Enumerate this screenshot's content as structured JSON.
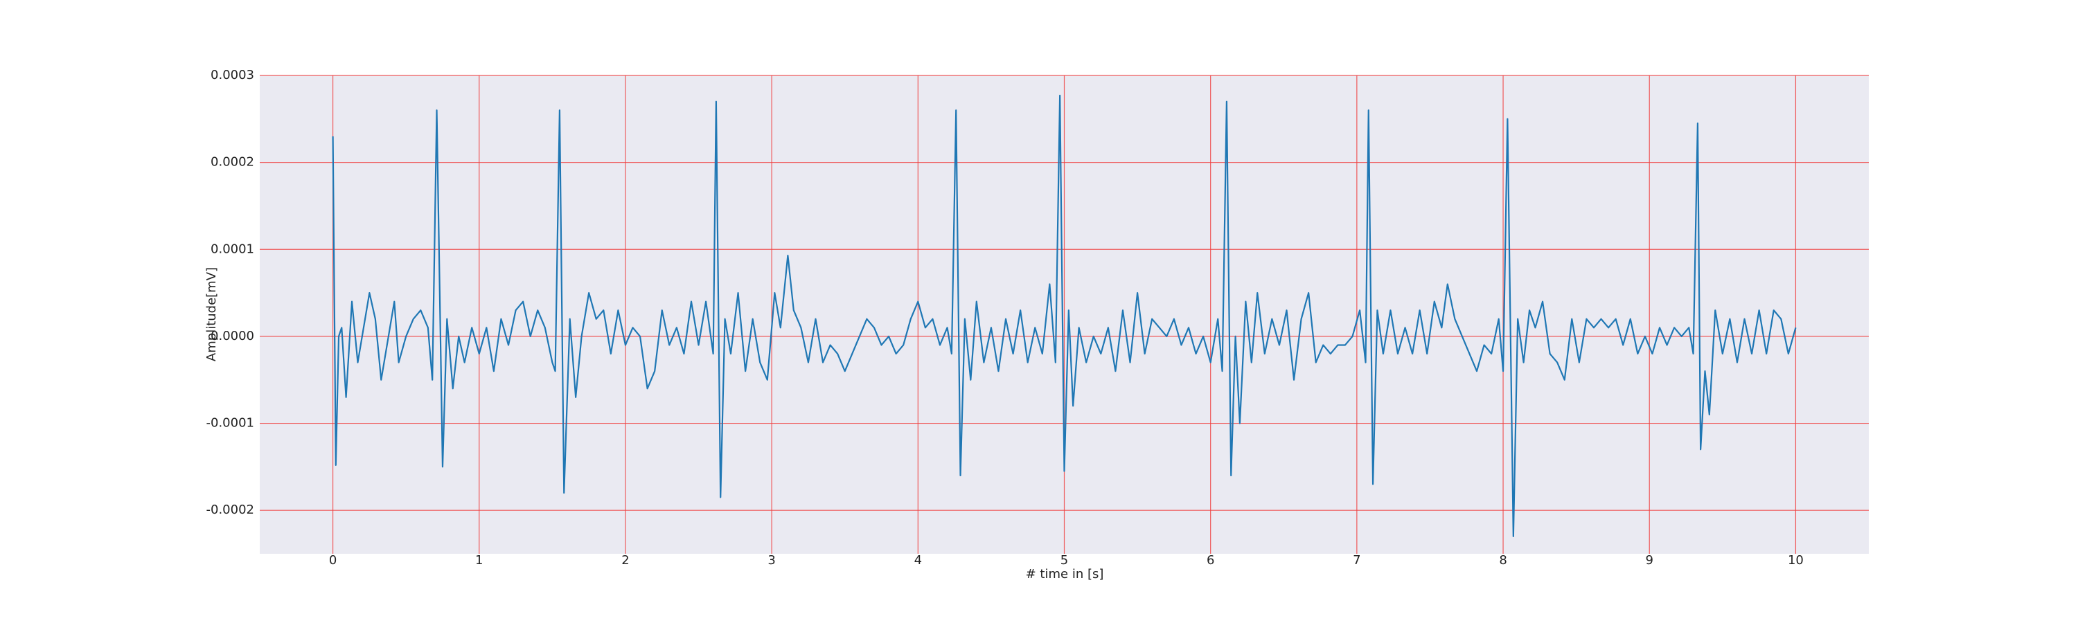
{
  "chart_data": {
    "type": "line",
    "x_label": "# time in [s]",
    "y_label": "Amplitude[mV]",
    "xlim": [
      -0.5,
      10.5
    ],
    "ylim": [
      -0.00025,
      0.0003
    ],
    "xticks": [
      0,
      1,
      2,
      3,
      4,
      5,
      6,
      7,
      8,
      9,
      10
    ],
    "yticks": [
      -0.0002,
      -0.0001,
      {
        "value": 0,
        "label": "0.0000"
      },
      0.0001,
      0.0002,
      0.0003
    ],
    "grid": true,
    "grid_color": "#f04040",
    "background": "#eaeaf2",
    "series": [
      {
        "color": "#1f77b4",
        "x": [
          0,
          0.02,
          0.04,
          0.06,
          0.09,
          0.13,
          0.17,
          0.21,
          0.25,
          0.29,
          0.33,
          0.38,
          0.42,
          0.45,
          0.5,
          0.55,
          0.6,
          0.65,
          0.68,
          0.71,
          0.75,
          0.78,
          0.82,
          0.86,
          0.9,
          0.95,
          1.0,
          1.05,
          1.1,
          1.15,
          1.2,
          1.25,
          1.3,
          1.35,
          1.4,
          1.45,
          1.5,
          1.52,
          1.55,
          1.58,
          1.62,
          1.66,
          1.7,
          1.75,
          1.8,
          1.85,
          1.9,
          1.95,
          2.0,
          2.05,
          2.1,
          2.15,
          2.2,
          2.25,
          2.3,
          2.35,
          2.4,
          2.45,
          2.5,
          2.55,
          2.6,
          2.62,
          2.65,
          2.68,
          2.72,
          2.77,
          2.82,
          2.87,
          2.92,
          2.97,
          3.02,
          3.06,
          3.11,
          3.15,
          3.2,
          3.25,
          3.3,
          3.35,
          3.4,
          3.45,
          3.5,
          3.55,
          3.6,
          3.65,
          3.7,
          3.75,
          3.8,
          3.85,
          3.9,
          3.95,
          4.0,
          4.05,
          4.1,
          4.15,
          4.2,
          4.23,
          4.26,
          4.29,
          4.32,
          4.36,
          4.4,
          4.45,
          4.5,
          4.55,
          4.6,
          4.65,
          4.7,
          4.75,
          4.8,
          4.85,
          4.9,
          4.94,
          4.97,
          5.0,
          5.03,
          5.06,
          5.1,
          5.15,
          5.2,
          5.25,
          5.3,
          5.35,
          5.4,
          5.45,
          5.5,
          5.55,
          5.6,
          5.65,
          5.7,
          5.75,
          5.8,
          5.85,
          5.9,
          5.95,
          6.0,
          6.05,
          6.08,
          6.11,
          6.14,
          6.17,
          6.2,
          6.24,
          6.28,
          6.32,
          6.37,
          6.42,
          6.47,
          6.52,
          6.57,
          6.62,
          6.67,
          6.72,
          6.77,
          6.82,
          6.87,
          6.92,
          6.97,
          7.02,
          7.06,
          7.08,
          7.11,
          7.14,
          7.18,
          7.23,
          7.28,
          7.33,
          7.38,
          7.43,
          7.48,
          7.53,
          7.58,
          7.62,
          7.67,
          7.72,
          7.77,
          7.82,
          7.87,
          7.92,
          7.97,
          8.0,
          8.03,
          8.07,
          8.1,
          8.14,
          8.18,
          8.22,
          8.27,
          8.32,
          8.37,
          8.42,
          8.47,
          8.52,
          8.57,
          8.62,
          8.67,
          8.72,
          8.77,
          8.82,
          8.87,
          8.92,
          8.97,
          9.02,
          9.07,
          9.12,
          9.17,
          9.22,
          9.27,
          9.3,
          9.33,
          9.35,
          9.38,
          9.41,
          9.45,
          9.5,
          9.55,
          9.6,
          9.65,
          9.7,
          9.75,
          9.8,
          9.85,
          9.9,
          9.95,
          10.0
        ],
        "values": [
          0.00023,
          -0.000148,
          0,
          1e-05,
          -7e-05,
          4e-05,
          -3e-05,
          1e-05,
          5e-05,
          2e-05,
          -5e-05,
          0,
          4e-05,
          -3e-05,
          0,
          2e-05,
          3e-05,
          1e-05,
          -5e-05,
          0.00026,
          -0.00015,
          2e-05,
          -6e-05,
          0,
          -3e-05,
          1e-05,
          -2e-05,
          1e-05,
          -4e-05,
          2e-05,
          -1e-05,
          3e-05,
          4e-05,
          0,
          3e-05,
          1e-05,
          -3e-05,
          -4e-05,
          0.00026,
          -0.00018,
          2e-05,
          -7e-05,
          0,
          5e-05,
          2e-05,
          3e-05,
          -2e-05,
          3e-05,
          -1e-05,
          1e-05,
          0,
          -6e-05,
          -4e-05,
          3e-05,
          -1e-05,
          1e-05,
          -2e-05,
          4e-05,
          -1e-05,
          4e-05,
          -2e-05,
          0.00027,
          -0.000185,
          2e-05,
          -2e-05,
          5e-05,
          -4e-05,
          2e-05,
          -3e-05,
          -5e-05,
          5e-05,
          1e-05,
          9.3e-05,
          3e-05,
          1e-05,
          -3e-05,
          2e-05,
          -3e-05,
          -1e-05,
          -2e-05,
          -4e-05,
          -2e-05,
          0,
          2e-05,
          1e-05,
          -1e-05,
          0,
          -2e-05,
          -1e-05,
          2e-05,
          4e-05,
          1e-05,
          2e-05,
          -1e-05,
          1e-05,
          -2e-05,
          0.00026,
          -0.00016,
          2e-05,
          -5e-05,
          4e-05,
          -3e-05,
          1e-05,
          -4e-05,
          2e-05,
          -2e-05,
          3e-05,
          -3e-05,
          1e-05,
          -2e-05,
          6e-05,
          -3e-05,
          0.000277,
          -0.000155,
          3e-05,
          -8e-05,
          1e-05,
          -3e-05,
          0,
          -2e-05,
          1e-05,
          -4e-05,
          3e-05,
          -3e-05,
          5e-05,
          -2e-05,
          2e-05,
          1e-05,
          0,
          2e-05,
          -1e-05,
          1e-05,
          -2e-05,
          0,
          -3e-05,
          2e-05,
          -4e-05,
          0.00027,
          -0.00016,
          0,
          -0.0001,
          4e-05,
          -3e-05,
          5e-05,
          -2e-05,
          2e-05,
          -1e-05,
          3e-05,
          -5e-05,
          2e-05,
          5e-05,
          -3e-05,
          -1e-05,
          -2e-05,
          -1e-05,
          -1e-05,
          0,
          3e-05,
          -3e-05,
          0.00026,
          -0.00017,
          3e-05,
          -2e-05,
          3e-05,
          -2e-05,
          1e-05,
          -2e-05,
          3e-05,
          -2e-05,
          4e-05,
          1e-05,
          6e-05,
          2e-05,
          0,
          -2e-05,
          -4e-05,
          -1e-05,
          -2e-05,
          2e-05,
          -4e-05,
          0.00025,
          -0.00023,
          2e-05,
          -3e-05,
          3e-05,
          1e-05,
          4e-05,
          -2e-05,
          -3e-05,
          -5e-05,
          2e-05,
          -3e-05,
          2e-05,
          1e-05,
          2e-05,
          1e-05,
          2e-05,
          -1e-05,
          2e-05,
          -2e-05,
          0,
          -2e-05,
          1e-05,
          -1e-05,
          1e-05,
          0,
          1e-05,
          -2e-05,
          0.000245,
          -0.00013,
          -4e-05,
          -9e-05,
          3e-05,
          -2e-05,
          2e-05,
          -3e-05,
          2e-05,
          -2e-05,
          3e-05,
          -2e-05,
          3e-05,
          2e-05,
          -2e-05,
          1e-05
        ]
      }
    ]
  }
}
